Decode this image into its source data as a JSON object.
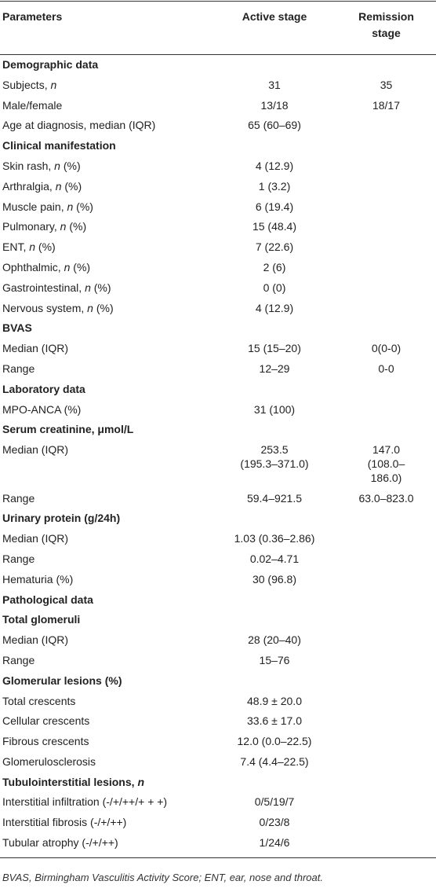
{
  "table": {
    "header": [
      "Parameters",
      "Active stage",
      "Remission stage"
    ],
    "rows": [
      {
        "section": "Demographic data"
      },
      {
        "label": [
          {
            "text": "Subjects, "
          },
          {
            "text": "n",
            "italic": true
          }
        ],
        "active": "31",
        "remission": "35"
      },
      {
        "label": "Male/female",
        "active": "13/18",
        "remission": "18/17"
      },
      {
        "label": "Age at diagnosis, median (IQR)",
        "active": "65 (60–69)"
      },
      {
        "section": "Clinical manifestation"
      },
      {
        "label": [
          {
            "text": "Skin rash, "
          },
          {
            "text": "n",
            "italic": true
          },
          {
            "text": " (%)"
          }
        ],
        "active": "4 (12.9)"
      },
      {
        "label": [
          {
            "text": "Arthralgia, "
          },
          {
            "text": "n",
            "italic": true
          },
          {
            "text": " (%)"
          }
        ],
        "active": "1 (3.2)"
      },
      {
        "label": [
          {
            "text": "Muscle pain, "
          },
          {
            "text": "n",
            "italic": true
          },
          {
            "text": " (%)"
          }
        ],
        "active": "6 (19.4)"
      },
      {
        "label": [
          {
            "text": "Pulmonary, "
          },
          {
            "text": "n",
            "italic": true
          },
          {
            "text": " (%)"
          }
        ],
        "active": "15 (48.4)"
      },
      {
        "label": [
          {
            "text": "ENT, "
          },
          {
            "text": "n",
            "italic": true
          },
          {
            "text": " (%)"
          }
        ],
        "active": "7 (22.6)"
      },
      {
        "label": [
          {
            "text": "Ophthalmic, "
          },
          {
            "text": "n",
            "italic": true
          },
          {
            "text": " (%)"
          }
        ],
        "active": "2 (6)"
      },
      {
        "label": [
          {
            "text": "Gastrointestinal, "
          },
          {
            "text": "n",
            "italic": true
          },
          {
            "text": " (%)"
          }
        ],
        "active": "0 (0)"
      },
      {
        "label": [
          {
            "text": "Nervous system, "
          },
          {
            "text": "n",
            "italic": true
          },
          {
            "text": " (%)"
          }
        ],
        "active": "4 (12.9)"
      },
      {
        "section": "BVAS"
      },
      {
        "label": "Median (IQR)",
        "active": "15 (15–20)",
        "remission": "0(0-0)"
      },
      {
        "label": "Range",
        "active": "12–29",
        "remission": "0-0"
      },
      {
        "section": "Laboratory data"
      },
      {
        "label": "MPO-ANCA (%)",
        "active": "31 (100)"
      },
      {
        "section": "Serum creatinine, μmol/L"
      },
      {
        "label": "Median (IQR)",
        "active": [
          "253.5",
          "(195.3–371.0)"
        ],
        "remission": [
          "147.0",
          "(108.0–186.0)"
        ]
      },
      {
        "label": "Range",
        "active": "59.4–921.5",
        "remission": "63.0–823.0"
      },
      {
        "section": "Urinary protein (g/24h)"
      },
      {
        "label": "Median (IQR)",
        "active": "1.03 (0.36–2.86)"
      },
      {
        "label": "Range",
        "active": "0.02–4.71"
      },
      {
        "label": "Hematuria (%)",
        "active": "30 (96.8)"
      },
      {
        "section": "Pathological data"
      },
      {
        "section": "Total glomeruli"
      },
      {
        "label": "Median (IQR)",
        "active": "28 (20–40)"
      },
      {
        "label": "Range",
        "active": "15–76"
      },
      {
        "section": "Glomerular lesions (%)"
      },
      {
        "label": "Total crescents",
        "active": "48.9 ± 20.0"
      },
      {
        "label": "Cellular crescents",
        "active": "33.6 ± 17.0"
      },
      {
        "label": "Fibrous crescents",
        "active": "12.0 (0.0–22.5)"
      },
      {
        "label": "Glomerulosclerosis",
        "active": "7.4 (4.4–22.5)"
      },
      {
        "section": [
          {
            "text": "Tubulointerstitial lesions, "
          },
          {
            "text": "n",
            "italic": true
          }
        ]
      },
      {
        "label": "Interstitial infiltration (-/+/++/+ + +)",
        "active": "0/5/19/7"
      },
      {
        "label": "Interstitial fibrosis (-/+/++)",
        "active": "0/23/8"
      },
      {
        "label": "Tubular atrophy (-/+/++)",
        "active": "1/24/6"
      }
    ],
    "footnote": "BVAS, Birmingham Vasculitis Activity Score; ENT, ear, nose and throat."
  }
}
